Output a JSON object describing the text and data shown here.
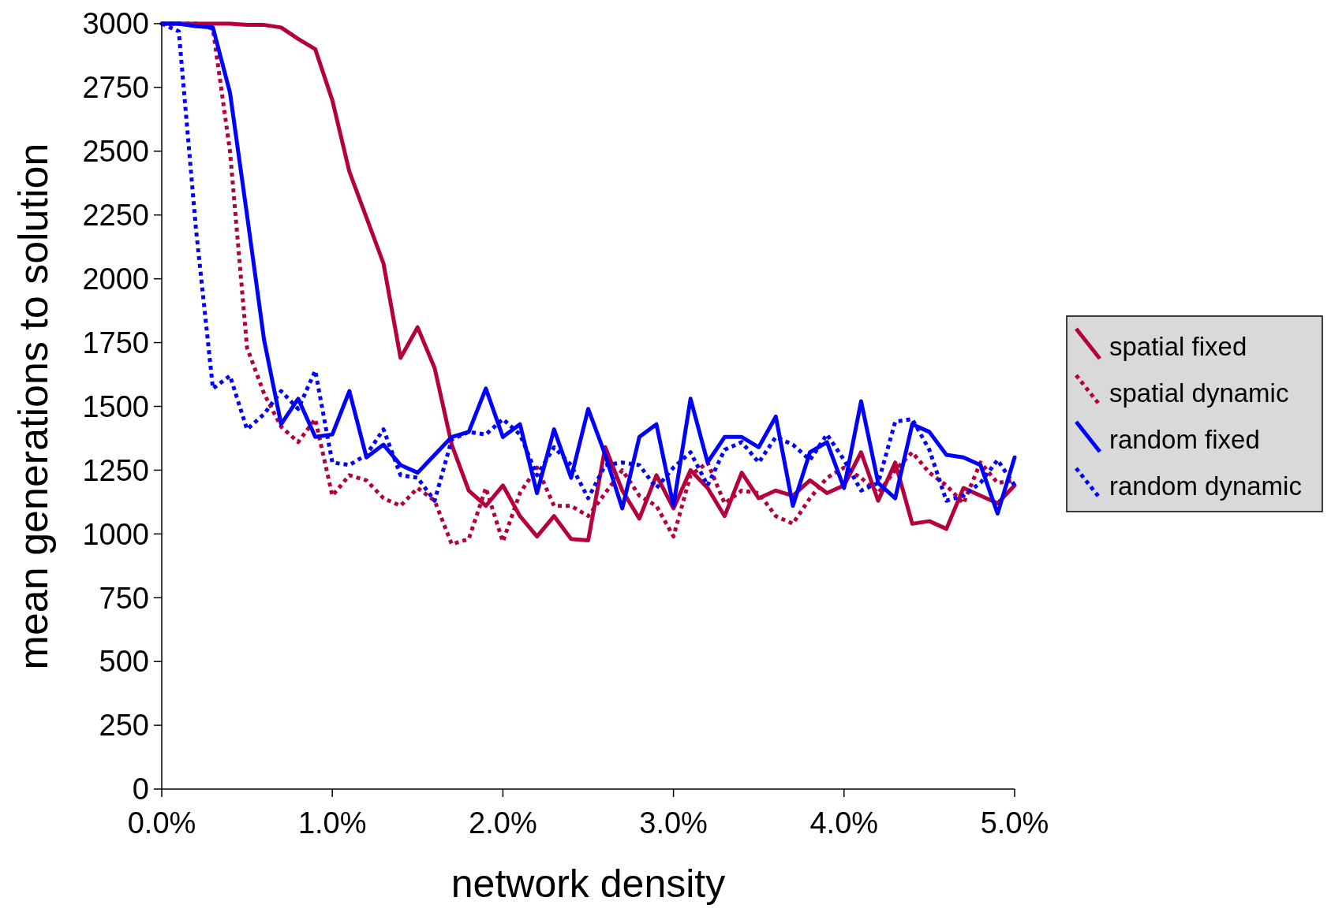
{
  "chart_data": {
    "type": "line",
    "xlabel": "network density",
    "ylabel": "mean generations to solution",
    "x": [
      0,
      0.1,
      0.2,
      0.3,
      0.4,
      0.5,
      0.6,
      0.7,
      0.8,
      0.9,
      1.0,
      1.1,
      1.2,
      1.3,
      1.4,
      1.5,
      1.6,
      1.7,
      1.8,
      1.9,
      2.0,
      2.1,
      2.2,
      2.3,
      2.4,
      2.5,
      2.6,
      2.7,
      2.8,
      2.9,
      3.0,
      3.1,
      3.2,
      3.3,
      3.4,
      3.5,
      3.6,
      3.7,
      3.8,
      3.9,
      4.0,
      4.1,
      4.2,
      4.3,
      4.4,
      4.5,
      4.6,
      4.7,
      4.8,
      4.9,
      5.0
    ],
    "xlim": [
      0,
      5
    ],
    "xticks": [
      {
        "value": 0,
        "label": "0.0%"
      },
      {
        "value": 1,
        "label": "1.0%"
      },
      {
        "value": 2,
        "label": "2.0%"
      },
      {
        "value": 3,
        "label": "3.0%"
      },
      {
        "value": 4,
        "label": "4.0%"
      },
      {
        "value": 5,
        "label": "5.0%"
      }
    ],
    "ylim": [
      0,
      3000
    ],
    "yticks": [
      0,
      250,
      500,
      750,
      1000,
      1250,
      1500,
      1750,
      2000,
      2250,
      2500,
      2750,
      3000
    ],
    "grid": false,
    "legend": "right",
    "marker": "none",
    "series": [
      {
        "name": "spatial fixed",
        "color": "#b5003f",
        "line_style": "solid",
        "values": [
          3000,
          3000,
          3000,
          3000,
          3000,
          2995,
          2995,
          2985,
          2940,
          2900,
          2700,
          2420,
          2240,
          2060,
          1690,
          1810,
          1650,
          1350,
          1170,
          1110,
          1190,
          1070,
          990,
          1070,
          980,
          975,
          1340,
          1170,
          1060,
          1230,
          1100,
          1250,
          1180,
          1070,
          1240,
          1140,
          1170,
          1150,
          1210,
          1160,
          1190,
          1320,
          1130,
          1280,
          1040,
          1050,
          1020,
          1180,
          1150,
          1120,
          1190
        ]
      },
      {
        "name": "spatial dynamic",
        "color": "#b5003f",
        "line_style": "dotted",
        "values": [
          3000,
          3000,
          3000,
          2980,
          2500,
          1730,
          1550,
          1420,
          1360,
          1450,
          1150,
          1230,
          1210,
          1140,
          1110,
          1180,
          1130,
          960,
          980,
          1180,
          970,
          1160,
          1260,
          1110,
          1110,
          1070,
          1160,
          1250,
          1150,
          1110,
          990,
          1230,
          1280,
          1120,
          1170,
          1160,
          1070,
          1040,
          1140,
          1220,
          1260,
          1220,
          1160,
          1250,
          1320,
          1240,
          1190,
          1120,
          1280,
          1200,
          1210
        ]
      },
      {
        "name": "random fixed",
        "color": "#0000ff",
        "line_style": "solid",
        "values": [
          3000,
          3000,
          2990,
          2985,
          2730,
          2250,
          1760,
          1430,
          1530,
          1380,
          1390,
          1560,
          1300,
          1350,
          1270,
          1240,
          1310,
          1380,
          1400,
          1570,
          1380,
          1430,
          1160,
          1410,
          1220,
          1490,
          1310,
          1100,
          1380,
          1430,
          1110,
          1530,
          1280,
          1380,
          1380,
          1340,
          1460,
          1110,
          1320,
          1360,
          1180,
          1520,
          1200,
          1140,
          1430,
          1400,
          1310,
          1300,
          1270,
          1080,
          1300
        ]
      },
      {
        "name": "random dynamic",
        "color": "#0000ff",
        "line_style": "dotted",
        "values": [
          3000,
          2970,
          2200,
          1570,
          1620,
          1410,
          1470,
          1560,
          1490,
          1640,
          1280,
          1270,
          1310,
          1410,
          1230,
          1220,
          1130,
          1370,
          1400,
          1390,
          1450,
          1390,
          1230,
          1340,
          1270,
          1140,
          1270,
          1280,
          1270,
          1180,
          1260,
          1320,
          1190,
          1330,
          1360,
          1280,
          1380,
          1350,
          1290,
          1390,
          1290,
          1170,
          1200,
          1440,
          1450,
          1330,
          1130,
          1150,
          1200,
          1290,
          1190
        ]
      }
    ]
  }
}
